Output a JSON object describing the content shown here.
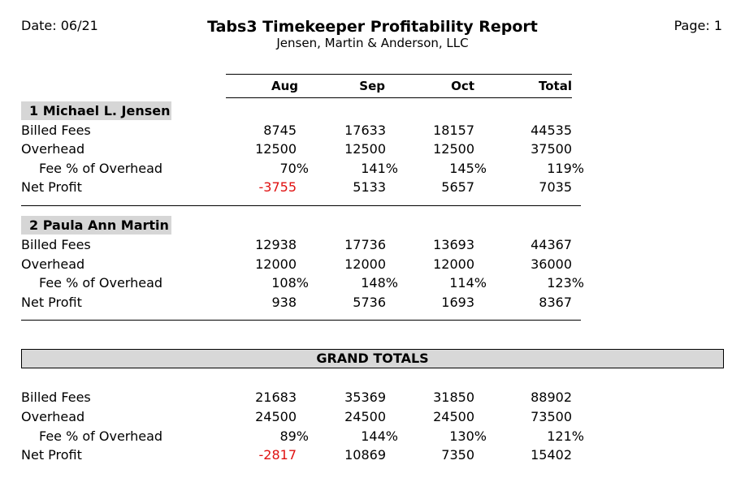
{
  "report": {
    "date": "Date: 06/21",
    "page": "Page: 1",
    "title": "Tabs3 Timekeeper Profitability Report",
    "firm": "Jensen, Martin & Anderson, LLC",
    "columns": [
      "Aug",
      "Sep",
      "Oct",
      "Total"
    ]
  },
  "timekeepers": [
    {
      "name": "1  Michael L. Jensen",
      "rows": [
        {
          "label": "Billed Fees",
          "values": [
            "8745",
            "17633",
            "18157",
            "44535"
          ]
        },
        {
          "label": "Overhead",
          "values": [
            "12500",
            "12500",
            "12500",
            "37500"
          ]
        },
        {
          "label": "Fee % of Overhead",
          "values": [
            "70%",
            "141%",
            "145%",
            "119%"
          ]
        },
        {
          "label": "Net Profit",
          "values": [
            "-3755",
            "5133",
            "5657",
            "7035"
          ]
        }
      ]
    },
    {
      "name": "2  Paula Ann Martin",
      "rows": [
        {
          "label": "Billed Fees",
          "values": [
            "12938",
            "17736",
            "13693",
            "44367"
          ]
        },
        {
          "label": "Overhead",
          "values": [
            "12000",
            "12000",
            "12000",
            "36000"
          ]
        },
        {
          "label": "Fee % of Overhead",
          "values": [
            "108%",
            "148%",
            "114%",
            "123%"
          ]
        },
        {
          "label": "Net Profit",
          "values": [
            "938",
            "5736",
            "1693",
            "8367"
          ]
        }
      ]
    }
  ],
  "grand_totals": {
    "heading": "GRAND TOTALS",
    "rows": [
      {
        "label": "Billed Fees",
        "values": [
          "21683",
          "35369",
          "31850",
          "88902"
        ]
      },
      {
        "label": "Overhead",
        "values": [
          "24500",
          "24500",
          "24500",
          "73500"
        ]
      },
      {
        "label": "Fee % of Overhead",
        "values": [
          "89%",
          "144%",
          "130%",
          "121%"
        ]
      },
      {
        "label": "Net Profit",
        "values": [
          "-2817",
          "10869",
          "7350",
          "15402"
        ]
      }
    ]
  },
  "colors": {
    "negative": "#e01010",
    "section_bg": "#d6d6d6"
  }
}
